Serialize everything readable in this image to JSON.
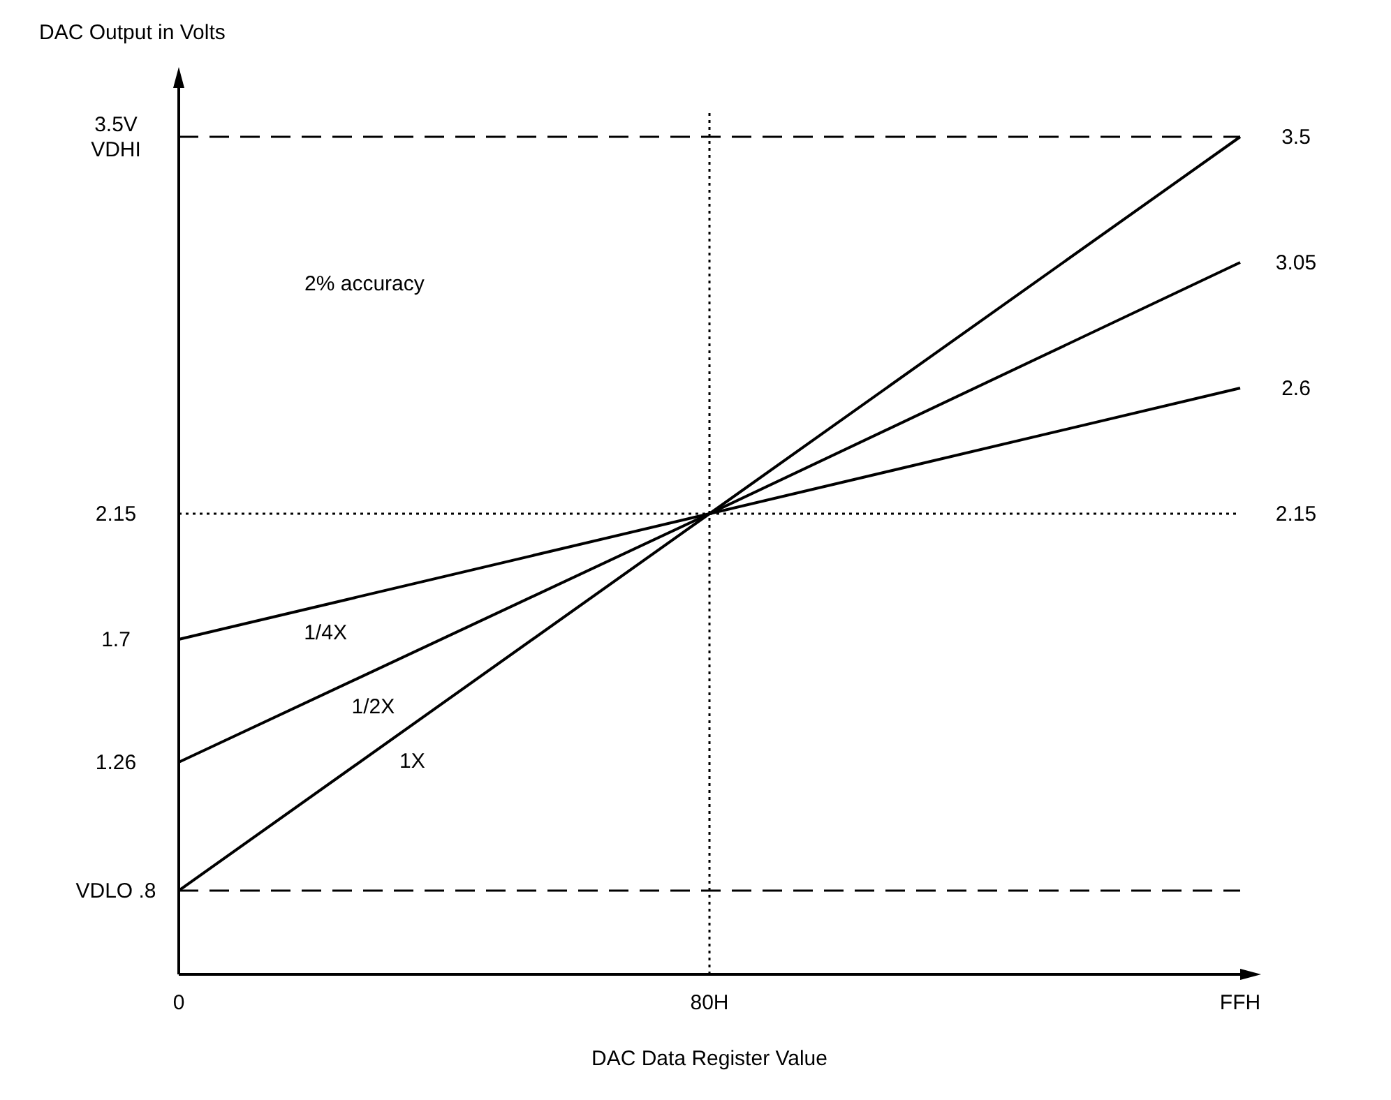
{
  "chart_data": {
    "type": "line",
    "xlabel": "DAC Data Register Value",
    "ylabel": "DAC Output in Volts",
    "categories": [
      "0",
      "80H",
      "FFH"
    ],
    "series": [
      {
        "name": "1X",
        "color": "#000000",
        "values": [
          0.8,
          2.15,
          3.5
        ]
      },
      {
        "name": "1/2X",
        "color": "#000000",
        "values": [
          1.26,
          2.15,
          3.05
        ]
      },
      {
        "name": "1/4X",
        "color": "#000000",
        "values": [
          1.7,
          2.15,
          2.6
        ]
      }
    ],
    "ylim": [
      0.5,
      3.6
    ],
    "yticks": [
      {
        "value": 0.8,
        "label": "VDLO .8"
      },
      1.26,
      1.7,
      2.15,
      {
        "value": 3.5,
        "label": "3.5V\nVDHI"
      }
    ],
    "y2lim": [
      0.5,
      3.6
    ],
    "y2ticks": [
      2.15,
      2.6,
      3.05,
      3.5
    ],
    "ref_lines": [
      {
        "axis": "y",
        "value": 3.5,
        "line_style": "dashed"
      },
      {
        "axis": "y",
        "value": 0.8,
        "line_style": "dashed"
      },
      {
        "axis": "y",
        "value": 2.15,
        "line_style": "dotted"
      },
      {
        "axis": "x",
        "value": "80H",
        "line_style": "dotted"
      }
    ],
    "annotations": [
      "2% accuracy"
    ],
    "grid": false,
    "marker": "none",
    "line_style": "solid"
  }
}
